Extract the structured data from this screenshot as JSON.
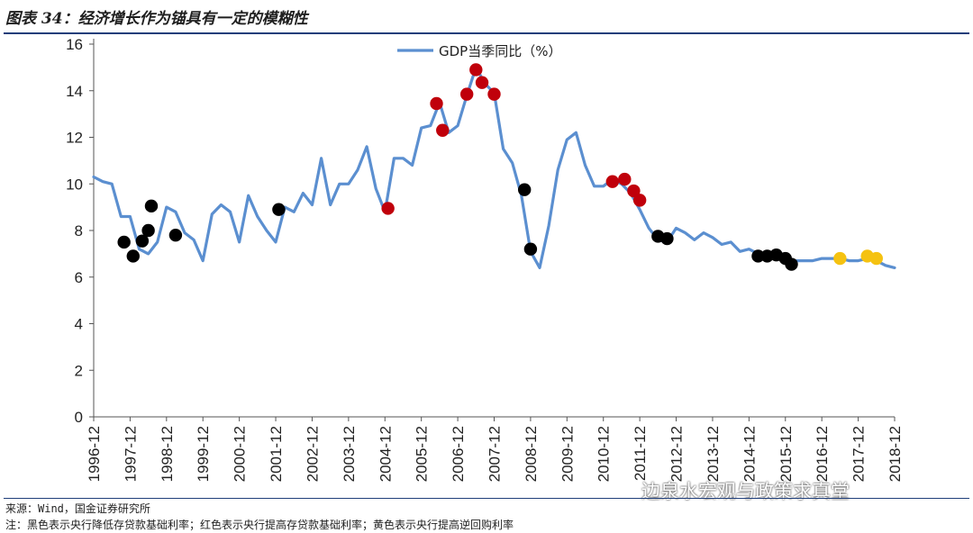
{
  "header": {
    "title": "图表 34：经济增长作为锚具有一定的模糊性"
  },
  "footer": {
    "source": "来源：Wind，国金证券研究所",
    "note": "注：黑色表示央行降低存贷款基础利率；红色表示央行提高存贷款基础利率；黄色表示央行提高逆回购利率",
    "watermark": "边泉水宏观与政策求真堂"
  },
  "colors": {
    "line": "#5b8fd0",
    "black": "#000000",
    "red": "#c0000b",
    "yellow": "#f5c211"
  },
  "chart_data": {
    "type": "line",
    "title": "",
    "xlabel": "",
    "ylabel": "",
    "ylim": [
      0,
      16
    ],
    "yticks": [
      0,
      2,
      4,
      6,
      8,
      10,
      12,
      14,
      16
    ],
    "xticks": [
      "1996-12",
      "1997-12",
      "1998-12",
      "1999-12",
      "2000-12",
      "2001-12",
      "2002-12",
      "2003-12",
      "2004-12",
      "2005-12",
      "2006-12",
      "2007-12",
      "2008-12",
      "2009-12",
      "2010-12",
      "2011-12",
      "2012-12",
      "2013-12",
      "2014-12",
      "2015-12",
      "2016-12",
      "2017-12",
      "2018-12"
    ],
    "legend": {
      "position": "top-center",
      "label": "GDP当季同比（%）"
    },
    "series": [
      {
        "name": "GDP当季同比（%）",
        "x": [
          "1996-12",
          "1997-03",
          "1997-06",
          "1997-09",
          "1997-12",
          "1998-03",
          "1998-06",
          "1998-09",
          "1998-12",
          "1999-03",
          "1999-06",
          "1999-09",
          "1999-12",
          "2000-03",
          "2000-06",
          "2000-09",
          "2000-12",
          "2001-03",
          "2001-06",
          "2001-09",
          "2001-12",
          "2002-03",
          "2002-06",
          "2002-09",
          "2002-12",
          "2003-03",
          "2003-06",
          "2003-09",
          "2003-12",
          "2004-03",
          "2004-06",
          "2004-09",
          "2004-12",
          "2005-03",
          "2005-06",
          "2005-09",
          "2005-12",
          "2006-03",
          "2006-06",
          "2006-09",
          "2006-12",
          "2007-03",
          "2007-06",
          "2007-09",
          "2007-12",
          "2008-03",
          "2008-06",
          "2008-09",
          "2008-12",
          "2009-03",
          "2009-06",
          "2009-09",
          "2009-12",
          "2010-03",
          "2010-06",
          "2010-09",
          "2010-12",
          "2011-03",
          "2011-06",
          "2011-09",
          "2011-12",
          "2012-03",
          "2012-06",
          "2012-09",
          "2012-12",
          "2013-03",
          "2013-06",
          "2013-09",
          "2013-12",
          "2014-03",
          "2014-06",
          "2014-09",
          "2014-12",
          "2015-03",
          "2015-06",
          "2015-09",
          "2015-12",
          "2016-03",
          "2016-06",
          "2016-09",
          "2016-12",
          "2017-03",
          "2017-06",
          "2017-09",
          "2017-12",
          "2018-03",
          "2018-06",
          "2018-09",
          "2018-12"
        ],
        "values": [
          10.3,
          10.1,
          10.0,
          8.6,
          8.6,
          7.2,
          7.0,
          7.5,
          9.0,
          8.8,
          7.9,
          7.6,
          6.7,
          8.7,
          9.1,
          8.8,
          7.5,
          9.5,
          8.6,
          8.0,
          7.5,
          9.0,
          8.8,
          9.6,
          9.1,
          11.1,
          9.1,
          10.0,
          10.0,
          10.6,
          11.6,
          9.8,
          8.8,
          11.1,
          11.1,
          10.8,
          12.4,
          12.5,
          13.5,
          12.2,
          12.5,
          13.8,
          15.0,
          14.3,
          13.9,
          11.5,
          10.9,
          9.5,
          7.1,
          6.4,
          8.2,
          10.6,
          11.9,
          12.2,
          10.8,
          9.9,
          9.9,
          10.2,
          10.0,
          9.6,
          8.9,
          8.1,
          7.6,
          7.5,
          8.1,
          7.9,
          7.6,
          7.9,
          7.7,
          7.4,
          7.5,
          7.1,
          7.2,
          7.0,
          7.0,
          6.9,
          6.7,
          6.7,
          6.7,
          6.7,
          6.8,
          6.8,
          6.8,
          6.7,
          6.7,
          6.8,
          6.7,
          6.5,
          6.4
        ]
      }
    ],
    "markers": [
      {
        "x": "1997-10",
        "y": 7.5,
        "color": "black"
      },
      {
        "x": "1998-01",
        "y": 6.9,
        "color": "black"
      },
      {
        "x": "1998-04",
        "y": 7.55,
        "color": "black"
      },
      {
        "x": "1998-06",
        "y": 8.0,
        "color": "black"
      },
      {
        "x": "1998-07",
        "y": 9.05,
        "color": "black"
      },
      {
        "x": "1999-03",
        "y": 7.8,
        "color": "black"
      },
      {
        "x": "2002-01",
        "y": 8.9,
        "color": "black"
      },
      {
        "x": "2005-01",
        "y": 8.95,
        "color": "red"
      },
      {
        "x": "2006-05",
        "y": 13.45,
        "color": "red"
      },
      {
        "x": "2006-07",
        "y": 12.3,
        "color": "red"
      },
      {
        "x": "2007-03",
        "y": 13.85,
        "color": "red"
      },
      {
        "x": "2007-06",
        "y": 14.9,
        "color": "red"
      },
      {
        "x": "2007-08",
        "y": 14.35,
        "color": "red"
      },
      {
        "x": "2007-12",
        "y": 13.85,
        "color": "red"
      },
      {
        "x": "2008-10",
        "y": 9.75,
        "color": "black"
      },
      {
        "x": "2008-12",
        "y": 7.2,
        "color": "black"
      },
      {
        "x": "2011-03",
        "y": 10.1,
        "color": "red"
      },
      {
        "x": "2011-07",
        "y": 10.2,
        "color": "red"
      },
      {
        "x": "2011-10",
        "y": 9.7,
        "color": "red"
      },
      {
        "x": "2011-12",
        "y": 9.3,
        "color": "red"
      },
      {
        "x": "2012-06",
        "y": 7.75,
        "color": "black"
      },
      {
        "x": "2012-09",
        "y": 7.65,
        "color": "black"
      },
      {
        "x": "2015-03",
        "y": 6.9,
        "color": "black"
      },
      {
        "x": "2015-06",
        "y": 6.9,
        "color": "black"
      },
      {
        "x": "2015-09",
        "y": 6.95,
        "color": "black"
      },
      {
        "x": "2015-12",
        "y": 6.8,
        "color": "black"
      },
      {
        "x": "2016-02",
        "y": 6.55,
        "color": "black"
      },
      {
        "x": "2017-06",
        "y": 6.8,
        "color": "yellow"
      },
      {
        "x": "2018-03",
        "y": 6.9,
        "color": "yellow"
      },
      {
        "x": "2018-06",
        "y": 6.8,
        "color": "yellow"
      }
    ]
  }
}
